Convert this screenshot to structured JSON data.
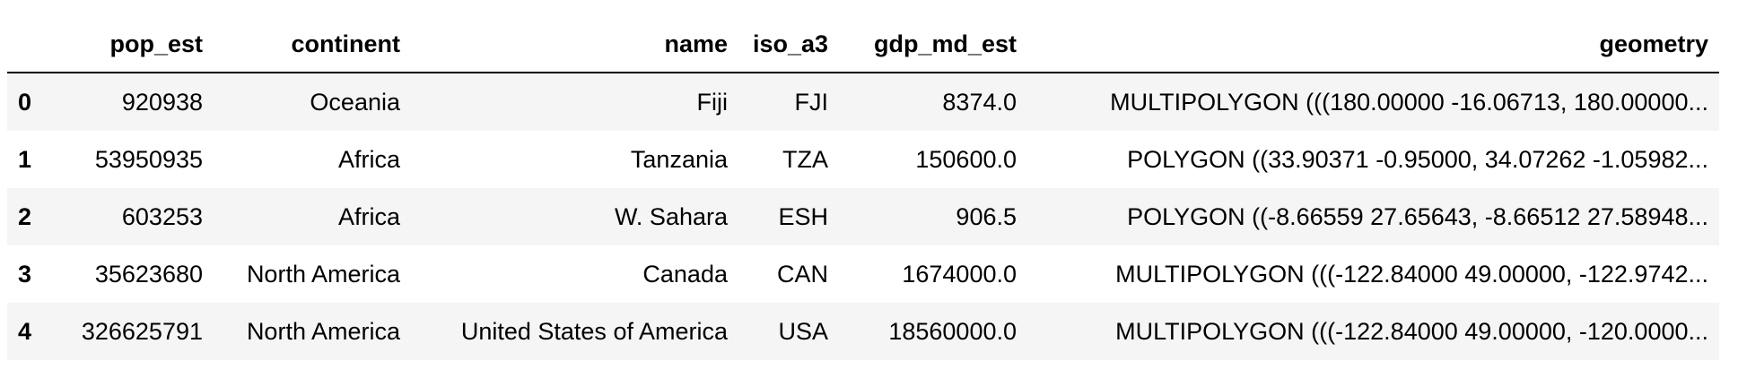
{
  "table": {
    "columns": [
      "",
      "pop_est",
      "continent",
      "name",
      "iso_a3",
      "gdp_md_est",
      "geometry"
    ],
    "rows": [
      [
        "0",
        "920938",
        "Oceania",
        "Fiji",
        "FJI",
        "8374.0",
        "MULTIPOLYGON (((180.00000 -16.06713, 180.00000..."
      ],
      [
        "1",
        "53950935",
        "Africa",
        "Tanzania",
        "TZA",
        "150600.0",
        "POLYGON ((33.90371 -0.95000, 34.07262 -1.05982..."
      ],
      [
        "2",
        "603253",
        "Africa",
        "W. Sahara",
        "ESH",
        "906.5",
        "POLYGON ((-8.66559 27.65643, -8.66512 27.58948..."
      ],
      [
        "3",
        "35623680",
        "North America",
        "Canada",
        "CAN",
        "1674000.0",
        "MULTIPOLYGON (((-122.84000 49.00000, -122.9742..."
      ],
      [
        "4",
        "326625791",
        "North America",
        "United States of America",
        "USA",
        "18560000.0",
        "MULTIPOLYGON (((-122.84000 49.00000, -120.0000..."
      ]
    ]
  },
  "colors": {
    "row_odd": "#f5f5f5",
    "row_even": "#ffffff",
    "header_rule": "#000000",
    "text": "#000000"
  }
}
